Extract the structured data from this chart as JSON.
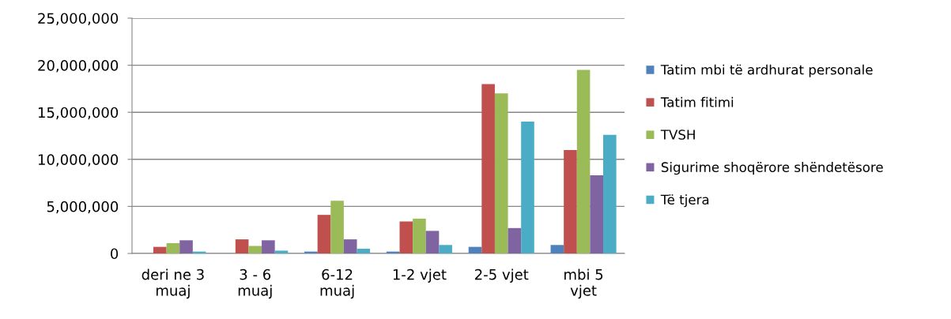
{
  "chart_data": {
    "type": "bar",
    "categories": [
      "deri ne 3\nmuaj",
      "3 - 6\nmuaj",
      "6-12\nmuaj",
      "1-2 vjet",
      "2-5 vjet",
      "mbi 5\nvjet"
    ],
    "series": [
      {
        "name": "Tatim mbi të ardhurat personale",
        "color": "#4f81bd",
        "values": [
          0,
          0,
          200000,
          200000,
          700000,
          900000
        ]
      },
      {
        "name": "Tatim fitimi",
        "color": "#c0504d",
        "values": [
          700000,
          1500000,
          4100000,
          3400000,
          18000000,
          11000000
        ]
      },
      {
        "name": "TVSH",
        "color": "#9bbb59",
        "values": [
          1100000,
          800000,
          5600000,
          3700000,
          17000000,
          19500000
        ]
      },
      {
        "name": "Sigurime shoqërore shëndetësore",
        "color": "#8064a2",
        "values": [
          1400000,
          1400000,
          1500000,
          2400000,
          2700000,
          8300000
        ]
      },
      {
        "name": "Të tjera",
        "color": "#4bacc6",
        "values": [
          200000,
          300000,
          500000,
          900000,
          14000000,
          12600000
        ]
      }
    ],
    "ylim": [
      0,
      25000000
    ],
    "yticks": [
      {
        "value": 0,
        "label": "0"
      },
      {
        "value": 5000000,
        "label": "5,000,000"
      },
      {
        "value": 10000000,
        "label": "10,000,000"
      },
      {
        "value": 15000000,
        "label": "15,000,000"
      },
      {
        "value": 20000000,
        "label": "20,000,000"
      },
      {
        "value": 25000000,
        "label": "25,000,000"
      }
    ],
    "grid": "y",
    "legend": "right"
  }
}
